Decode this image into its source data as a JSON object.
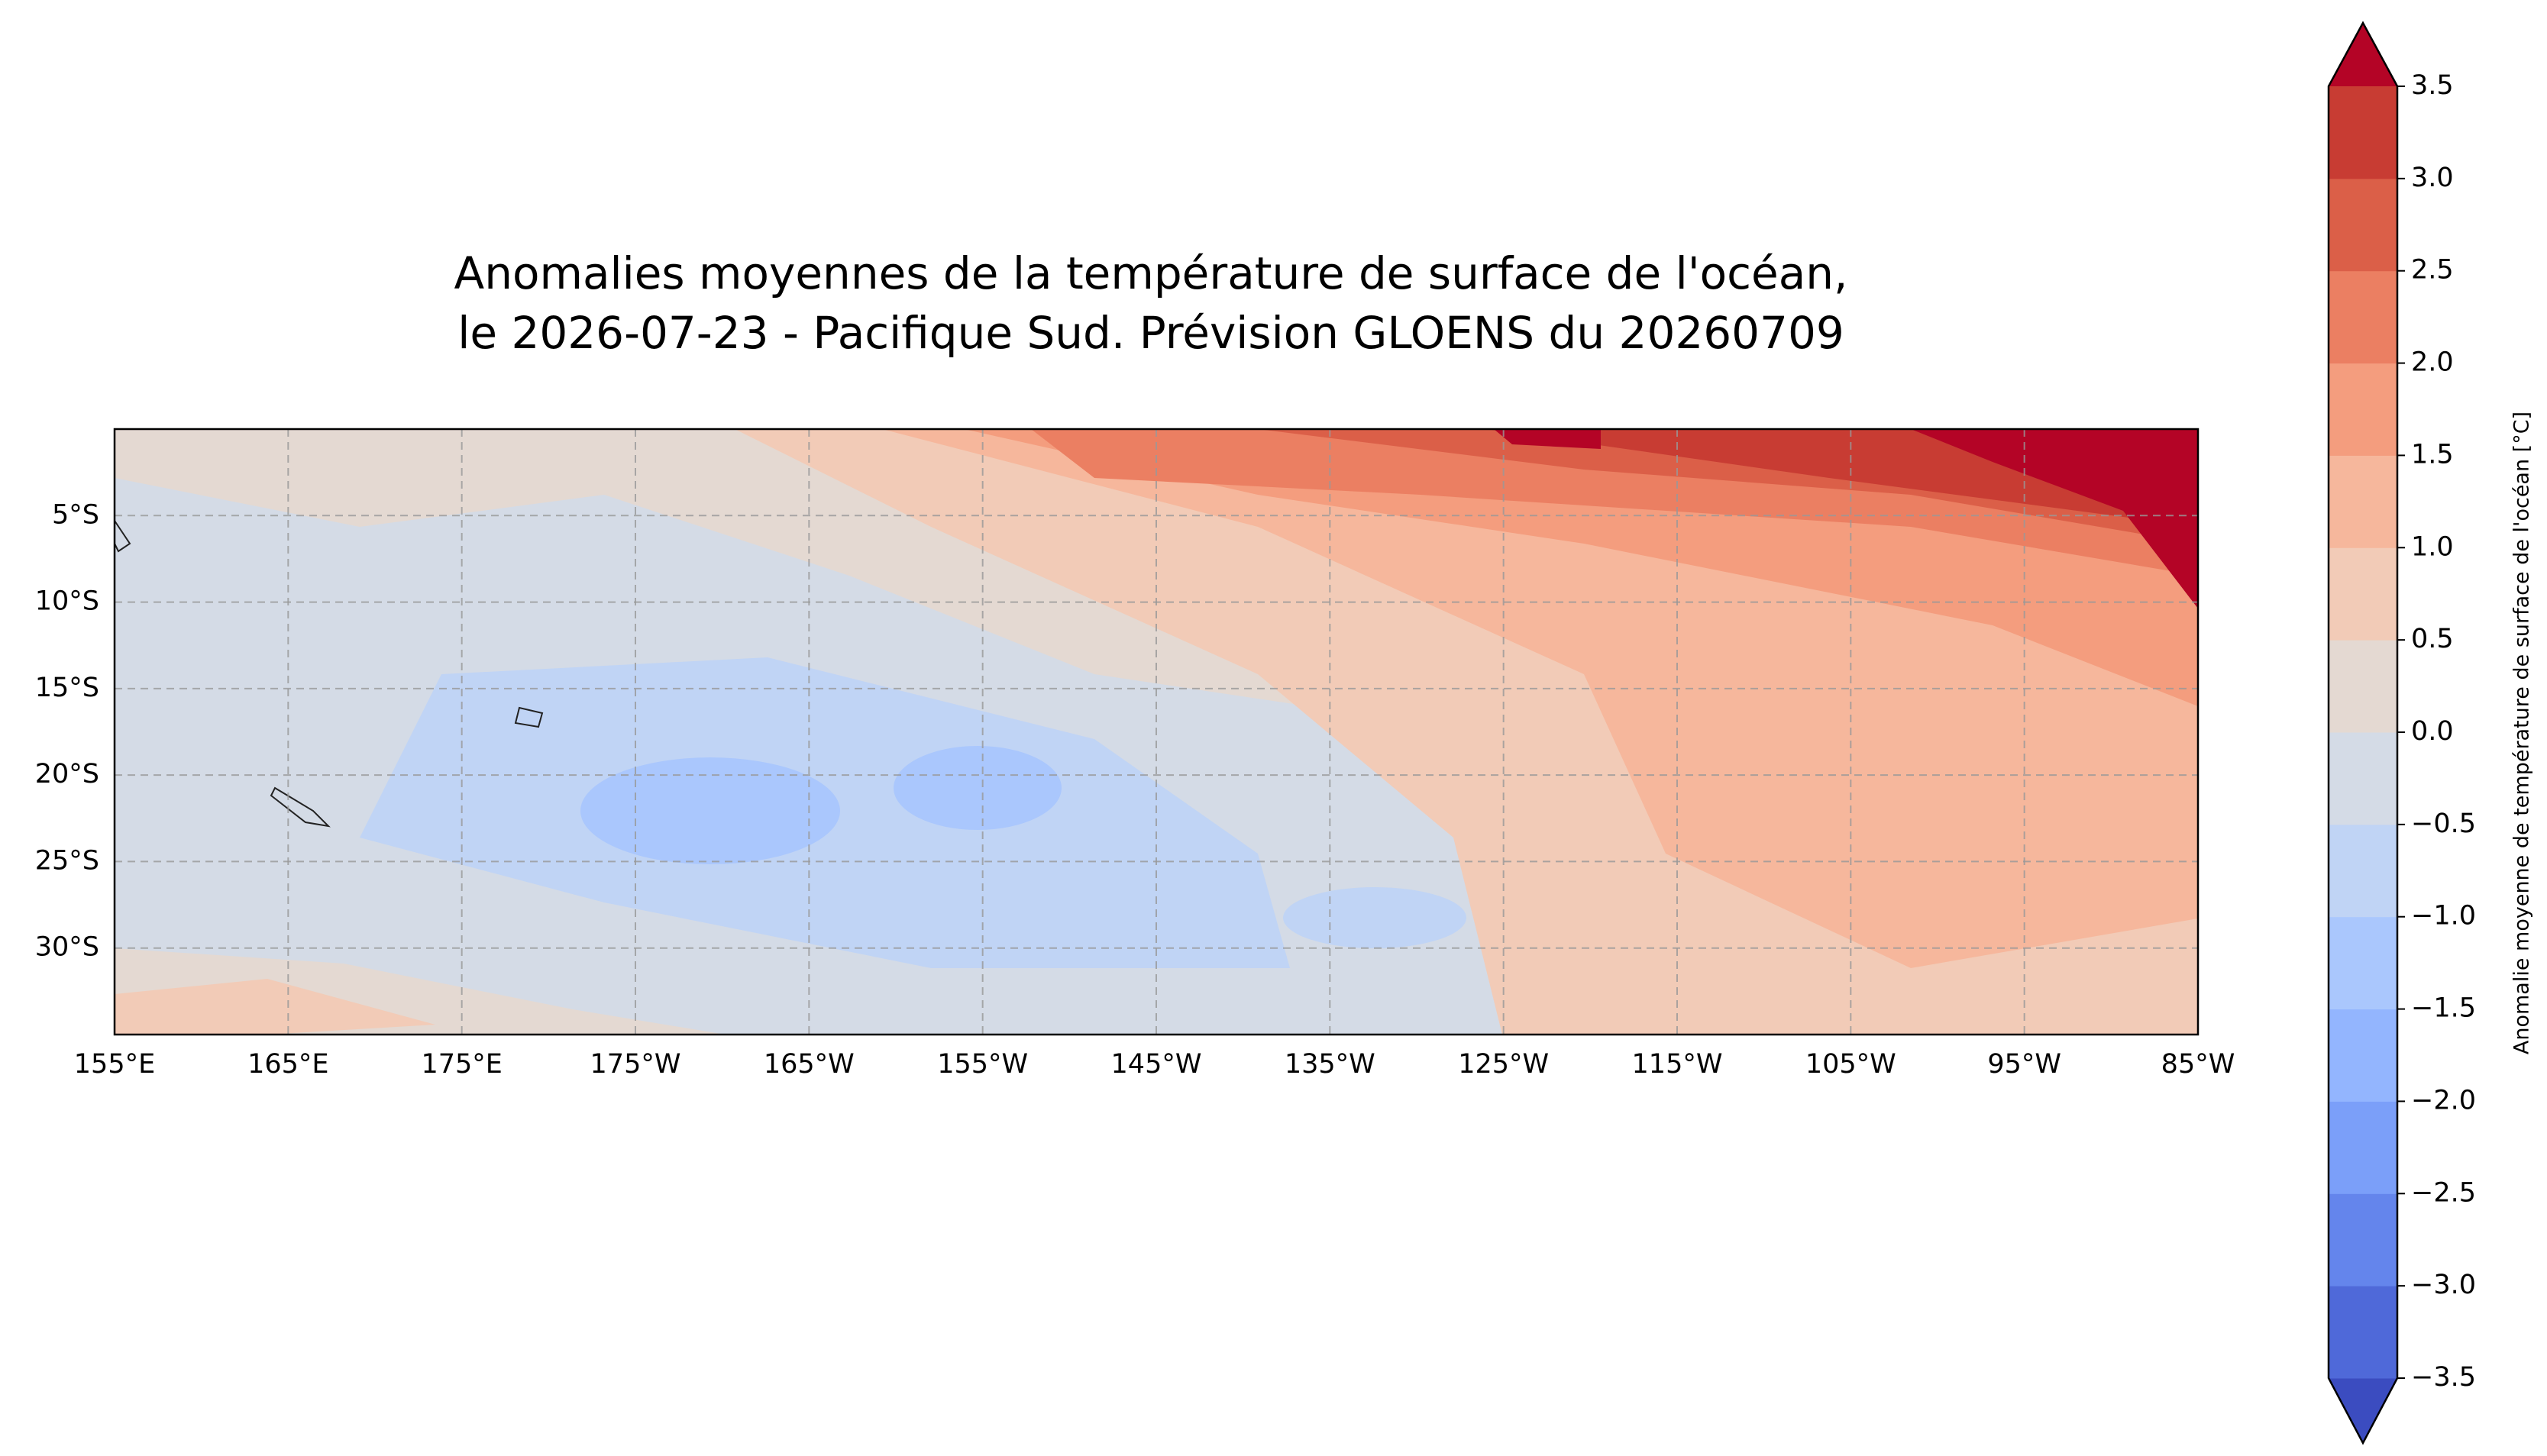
{
  "chart_data": {
    "type": "contour-map",
    "title": [
      "Anomalies moyennes de la température de surface de l'océan,",
      "le 2026-07-23 - Pacifique Sud. Prévision GLOENS du 20260709"
    ],
    "xlim": [
      155,
      275
    ],
    "xticks": [
      {
        "value": 155,
        "label": "155°E"
      },
      {
        "value": 165,
        "label": "165°E"
      },
      {
        "value": 175,
        "label": "175°E"
      },
      {
        "value": 185,
        "label": "175°W"
      },
      {
        "value": 195,
        "label": "165°W"
      },
      {
        "value": 205,
        "label": "155°W"
      },
      {
        "value": 215,
        "label": "145°W"
      },
      {
        "value": 225,
        "label": "135°W"
      },
      {
        "value": 235,
        "label": "125°W"
      },
      {
        "value": 245,
        "label": "115°W"
      },
      {
        "value": 255,
        "label": "105°W"
      },
      {
        "value": 265,
        "label": "95°W"
      },
      {
        "value": 275,
        "label": "85°W"
      }
    ],
    "ylim": [
      -35,
      0
    ],
    "yticks": [
      {
        "value": -5,
        "label": "5°S"
      },
      {
        "value": -10,
        "label": "10°S"
      },
      {
        "value": -15,
        "label": "15°S"
      },
      {
        "value": -20,
        "label": "20°S"
      },
      {
        "value": -25,
        "label": "25°S"
      },
      {
        "value": -30,
        "label": "30°S"
      }
    ],
    "grid": true,
    "colorbar": {
      "label": "Anomalie moyenne de température de surface de l'océan [°C]",
      "clim": [
        -3.5,
        3.5
      ],
      "ticks": [
        {
          "value": -3.5,
          "label": "−3.5"
        },
        {
          "value": -3.0,
          "label": "−3.0"
        },
        {
          "value": -2.5,
          "label": "−2.5"
        },
        {
          "value": -2.0,
          "label": "−2.0"
        },
        {
          "value": -1.5,
          "label": "−1.5"
        },
        {
          "value": -1.0,
          "label": "−1.0"
        },
        {
          "value": -0.5,
          "label": "−0.5"
        },
        {
          "value": 0,
          "label": "0.0"
        },
        {
          "value": 0.5,
          "label": "0.5"
        },
        {
          "value": 1.0,
          "label": "1.0"
        },
        {
          "value": 1.5,
          "label": "1.5"
        },
        {
          "value": 2.0,
          "label": "2.0"
        },
        {
          "value": 2.5,
          "label": "2.5"
        },
        {
          "value": 3.0,
          "label": "3.0"
        },
        {
          "value": 3.5,
          "label": "3.5"
        }
      ],
      "colors": [
        "#3b4cc0",
        "#4f69d9",
        "#6485ec",
        "#7b9ff9",
        "#93b5fe",
        "#aac7fd",
        "#c0d4f5",
        "#d4dbe6",
        "#e4d9d2",
        "#f2cbb7",
        "#f6b79c",
        "#f49d7e",
        "#eb7f62",
        "#db5f48",
        "#c83c33",
        "#b40426"
      ]
    }
  }
}
